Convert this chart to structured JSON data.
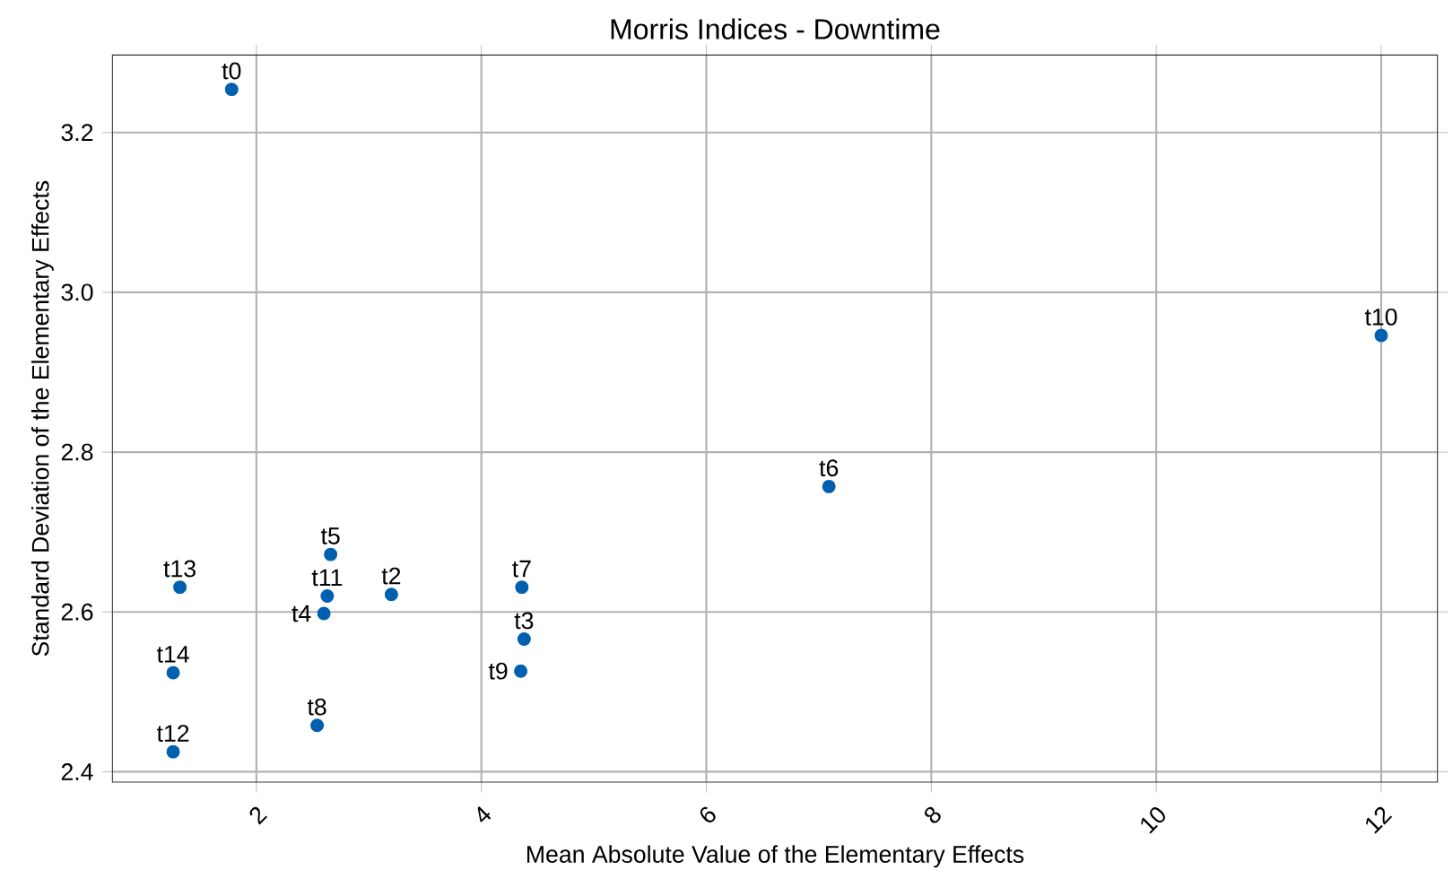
{
  "chart_data": {
    "type": "scatter",
    "title": "Morris Indices - Downtime",
    "xlabel": "Mean Absolute Value of the Elementary Effects",
    "ylabel": "Standard Deviation of the Elementary Effects",
    "x": [
      1.78,
      2.6,
      3.2,
      4.38,
      2.6,
      2.66,
      7.09,
      4.36,
      2.54,
      4.35,
      12.0,
      2.63,
      1.26,
      1.32,
      1.26
    ],
    "series": [
      {
        "color": "#0060b0",
        "values": [
          3.254,
          null,
          2.622,
          2.566,
          2.598,
          2.672,
          2.757,
          2.631,
          2.458,
          2.526,
          2.946,
          2.62,
          2.425,
          2.631,
          2.524
        ]
      }
    ],
    "annotations": [
      {
        "text": "t0",
        "x": 1.78,
        "y": 3.254
      },
      {
        "text": "t2",
        "x": 3.2,
        "y": 2.622
      },
      {
        "text": "t3",
        "x": 4.38,
        "y": 2.566
      },
      {
        "text": "t4",
        "x": 2.6,
        "y": 2.598
      },
      {
        "text": "t5",
        "x": 2.66,
        "y": 2.672
      },
      {
        "text": "t6",
        "x": 7.09,
        "y": 2.757
      },
      {
        "text": "t7",
        "x": 4.36,
        "y": 2.631
      },
      {
        "text": "t8",
        "x": 2.54,
        "y": 2.458
      },
      {
        "text": "t9",
        "x": 4.35,
        "y": 2.526
      },
      {
        "text": "t10",
        "x": 12.0,
        "y": 2.946
      },
      {
        "text": "t11",
        "x": 2.63,
        "y": 2.62
      },
      {
        "text": "t12",
        "x": 1.26,
        "y": 2.425
      },
      {
        "text": "t13",
        "x": 1.32,
        "y": 2.631
      },
      {
        "text": "t14",
        "x": 1.26,
        "y": 2.524
      }
    ],
    "xlim": [
      0.72,
      12.5
    ],
    "ylim": [
      2.387,
      3.297
    ],
    "xticks": [
      2,
      4,
      6,
      8,
      10,
      12
    ],
    "yticks": [
      2.4,
      2.6,
      2.8,
      {
        "value": 3.0,
        "label": "3.0"
      },
      3.2
    ],
    "grid": true
  }
}
